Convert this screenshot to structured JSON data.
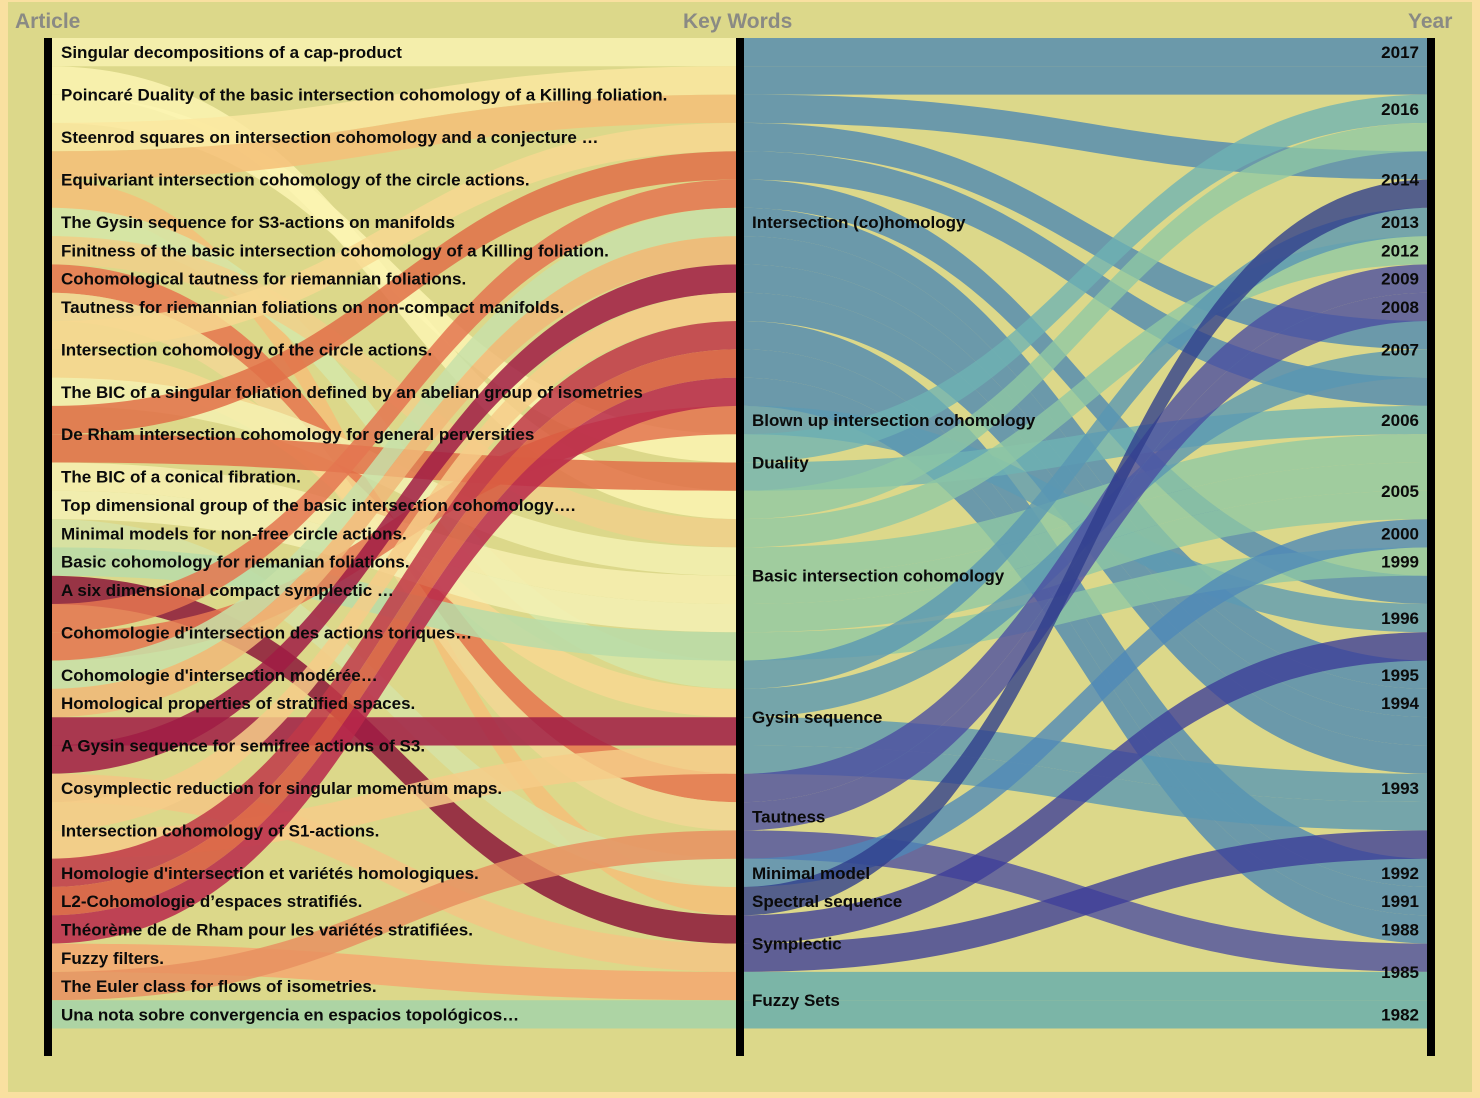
{
  "headers": {
    "article": "Article",
    "keywords": "Key Words",
    "year": "Year"
  },
  "articles": [
    {
      "label": "Singular decompositions of a cap-product",
      "color": "#f8f2b0",
      "keywords": [
        "Intersection (co)homology"
      ],
      "year": "2017"
    },
    {
      "label": "Poincaré Duality of the basic intersection cohomology of a Killing foliation.",
      "color": "#fbf5b2",
      "keywords": [
        "Basic intersection cohomology",
        "Duality"
      ],
      "year": "2016"
    },
    {
      "label": "Steenrod squares on intersection cohomology and a conjecture …",
      "color": "#fae8a0",
      "keywords": [
        "Intersection (co)homology"
      ],
      "year": "2016"
    },
    {
      "label": "Equivariant intersection cohomology of the circle actions.",
      "color": "#f4c078",
      "keywords": [
        "Intersection (co)homology",
        "Spectral sequence"
      ],
      "year": "2014"
    },
    {
      "label": "The Gysin sequence for S3-actions on manifolds",
      "color": "#d5e8a8",
      "keywords": [
        "Gysin sequence"
      ],
      "year": "2013"
    },
    {
      "label": "Finitness of the basic intersection cohomology of a Killing foliation.",
      "color": "#f0d08a",
      "keywords": [
        "Basic intersection cohomology"
      ],
      "year": "2012"
    },
    {
      "label": "Cohomological tautness for riemannian foliations.",
      "color": "#e6764e",
      "keywords": [
        "Tautness"
      ],
      "year": "2009"
    },
    {
      "label": "Tautness for riemannian foliations on non-compact manifolds.",
      "color": "#f2d794",
      "keywords": [
        "Tautness"
      ],
      "year": "2008"
    },
    {
      "label": "Intersection cohomology of the circle actions.",
      "color": "#f7d890",
      "keywords": [
        "Intersection (co)homology",
        "Gysin sequence"
      ],
      "year": "2007"
    },
    {
      "label": "The BIC of a singular foliation defined by an abelian group of isometries",
      "color": "#f3f1b0",
      "keywords": [
        "Basic intersection cohomology"
      ],
      "year": "2006"
    },
    {
      "label": "De Rham intersection cohomology for general perversities",
      "color": "#e07048",
      "keywords": [
        "Intersection (co)homology",
        "Duality"
      ],
      "year": "2006"
    },
    {
      "label": "The BIC of a conical fibration.",
      "color": "#f7f0b0",
      "keywords": [
        "Basic intersection cohomology"
      ],
      "year": "2005"
    },
    {
      "label": "Top dimensional group of the basic intersection cohomology….",
      "color": "#f4f1b4",
      "keywords": [
        "Basic intersection cohomology"
      ],
      "year": "2005"
    },
    {
      "label": "Minimal models for non-free circle actions.",
      "color": "#d6e3a4",
      "keywords": [
        "Minimal model"
      ],
      "year": "2000"
    },
    {
      "label": "Basic cohomology for riemanian foliations.",
      "color": "#b8dca8",
      "keywords": [
        "Basic intersection cohomology"
      ],
      "year": "1999"
    },
    {
      "label": "A six dimensional compact symplectic …",
      "color": "#8c1838",
      "keywords": [
        "Symplectic"
      ],
      "year": "1996"
    },
    {
      "label": "Cohomologie d'intersection des actions toriques…",
      "color": "#e47650",
      "keywords": [
        "Intersection (co)homology",
        "Blown up intersection cohomology"
      ],
      "year": "1996"
    },
    {
      "label": "Cohomologie d'intersection modérée…",
      "color": "#c8e0a8",
      "keywords": [
        "Intersection (co)homology"
      ],
      "year": "1995"
    },
    {
      "label": "Homological properties of stratified spaces.",
      "color": "#f0b878",
      "keywords": [
        "Intersection (co)homology"
      ],
      "year": "1994"
    },
    {
      "label": "A Gysin sequence for semifree actions of S3.",
      "color": "#a01c44",
      "keywords": [
        "Gysin sequence",
        "Intersection (co)homology"
      ],
      "year": "1993"
    },
    {
      "label": "Cosymplectic reduction for singular momentum maps.",
      "color": "#f3c584",
      "keywords": [
        "Symplectic"
      ],
      "year": "1993"
    },
    {
      "label": "Intersection cohomology of S1-actions.",
      "color": "#f6cc88",
      "keywords": [
        "Intersection (co)homology",
        "Gysin sequence"
      ],
      "year": "1993"
    },
    {
      "label": "Homologie d'intersection et variétés homologiques.",
      "color": "#c03848",
      "keywords": [
        "Intersection (co)homology"
      ],
      "year": "1992"
    },
    {
      "label": "L2-Cohomologie d’espaces stratifiés.",
      "color": "#d85840",
      "keywords": [
        "Intersection (co)homology"
      ],
      "year": "1991"
    },
    {
      "label": "Théorème de de Rham pour les variétés stratifiées.",
      "color": "#b8284a",
      "keywords": [
        "Intersection (co)homology"
      ],
      "year": "1988"
    },
    {
      "label": "Fuzzy filters.",
      "color": "#f4a870",
      "keywords": [
        "Fuzzy Sets"
      ],
      "year": "1985"
    },
    {
      "label": "The Euler class for flows of isometries.",
      "color": "#e89060",
      "keywords": [
        "Tautness"
      ],
      "year": "1985"
    },
    {
      "label": "Una nota sobre convergencia en espacios topológicos…",
      "color": "#a4d4a8",
      "keywords": [
        "Fuzzy Sets"
      ],
      "year": "1982"
    }
  ],
  "keywords": [
    {
      "label": "Intersection (co)homology",
      "color": "#4c86b4"
    },
    {
      "label": "Blown up intersection cohomology",
      "color": "#5c9ab4"
    },
    {
      "label": "Duality",
      "color": "#6eb2b4"
    },
    {
      "label": "Basic intersection cohomology",
      "color": "#90c8a4"
    },
    {
      "label": "Gysin sequence",
      "color": "#5896b4"
    },
    {
      "label": "Tautness",
      "color": "#4a4ca0"
    },
    {
      "label": "Minimal model",
      "color": "#4e88b8"
    },
    {
      "label": "Spectral sequence",
      "color": "#2e3c8c"
    },
    {
      "label": "Symplectic",
      "color": "#3c3c98"
    },
    {
      "label": "Fuzzy Sets",
      "color": "#60aab0"
    }
  ],
  "years": [
    "2017",
    "2016",
    "2014",
    "2013",
    "2012",
    "2009",
    "2008",
    "2007",
    "2006",
    "2005",
    "2000",
    "1999",
    "1996",
    "1995",
    "1994",
    "1993",
    "1992",
    "1991",
    "1988",
    "1985",
    "1982"
  ]
}
